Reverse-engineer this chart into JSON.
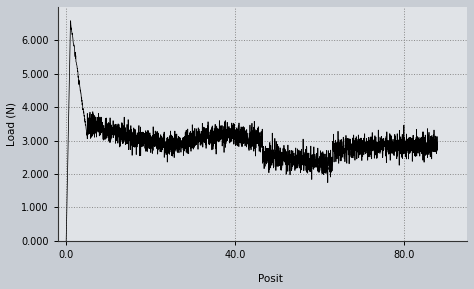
{
  "ylabel": "Load (N)",
  "xlabel": "Posit",
  "yticks": [
    0.0,
    1.0,
    2.0,
    3.0,
    4.0,
    5.0,
    6.0
  ],
  "ytick_labels": [
    "0.000",
    "1.000",
    "2.000",
    "3.000",
    "4.000",
    "5.000",
    "6.000"
  ],
  "xticks": [
    0.0,
    40.0,
    80.0
  ],
  "xtick_labels": [
    "0.0",
    "40.0",
    "80.0"
  ],
  "ylim": [
    0.0,
    7.0
  ],
  "xlim": [
    -2.0,
    95.0
  ],
  "line_color": "#000000",
  "background_color": "#e8e8e8",
  "grid_color": "#888888",
  "spike_peak_y": 6.5,
  "spike_peak_x": 3.0,
  "friction_mean": 3.05,
  "friction_noise": 0.18,
  "friction_start_x": 5.0,
  "friction_end_x": 88.0,
  "num_points": 3000,
  "photo_bg_color": "#c8cdd4",
  "axes_bg_alpha": 0.45
}
